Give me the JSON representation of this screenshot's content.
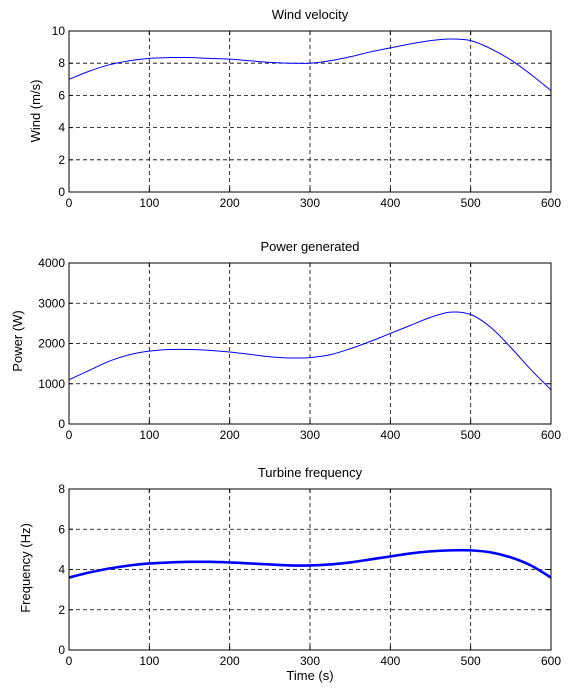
{
  "colors": {
    "line": "#0000ff",
    "axis": "#000000",
    "background": "#ffffff"
  },
  "chart_data": [
    {
      "type": "line",
      "title": "Wind velocity",
      "xlabel": "",
      "ylabel": "Wind  (m/s)",
      "xlim": [
        0,
        600
      ],
      "ylim": [
        0,
        10
      ],
      "xticks": [
        "0",
        "100",
        "200",
        "300",
        "400",
        "500",
        "600"
      ],
      "yticks": [
        "0",
        "2",
        "4",
        "6",
        "8",
        "10"
      ],
      "grid": true,
      "series": [
        {
          "x": [
            0,
            25,
            50,
            75,
            100,
            125,
            150,
            175,
            200,
            225,
            250,
            275,
            300,
            325,
            350,
            375,
            400,
            425,
            450,
            475,
            500,
            525,
            550,
            575,
            600
          ],
          "y": [
            7.0,
            7.5,
            7.9,
            8.15,
            8.3,
            8.35,
            8.35,
            8.3,
            8.25,
            8.15,
            8.05,
            8.0,
            8.0,
            8.15,
            8.4,
            8.7,
            8.95,
            9.2,
            9.4,
            9.5,
            9.4,
            8.9,
            8.2,
            7.3,
            6.3
          ]
        }
      ]
    },
    {
      "type": "line",
      "title": "Power generated",
      "xlabel": "",
      "ylabel": "Power (W)",
      "xlim": [
        0,
        600
      ],
      "ylim": [
        0,
        4000
      ],
      "xticks": [
        "0",
        "100",
        "200",
        "300",
        "400",
        "500",
        "600"
      ],
      "yticks": [
        "0",
        "1000",
        "2000",
        "3000",
        "4000"
      ],
      "grid": true,
      "series": [
        {
          "x": [
            0,
            25,
            50,
            75,
            100,
            125,
            150,
            175,
            200,
            225,
            250,
            275,
            300,
            325,
            350,
            375,
            400,
            425,
            450,
            475,
            500,
            525,
            550,
            575,
            600
          ],
          "y": [
            1100,
            1330,
            1560,
            1720,
            1810,
            1850,
            1850,
            1830,
            1790,
            1730,
            1670,
            1640,
            1650,
            1720,
            1870,
            2050,
            2250,
            2450,
            2650,
            2780,
            2720,
            2400,
            1900,
            1350,
            850
          ]
        }
      ]
    },
    {
      "type": "line",
      "title": "Turbine frequency",
      "xlabel": "Time (s)",
      "ylabel": "Frequency (Hz)",
      "xlim": [
        0,
        600
      ],
      "ylim": [
        0,
        8
      ],
      "xticks": [
        "0",
        "100",
        "200",
        "300",
        "400",
        "500",
        "600"
      ],
      "yticks": [
        "0",
        "2",
        "4",
        "6",
        "8"
      ],
      "grid": true,
      "series": [
        {
          "x": [
            0,
            25,
            50,
            75,
            100,
            125,
            150,
            175,
            200,
            225,
            250,
            275,
            300,
            325,
            350,
            375,
            400,
            425,
            450,
            475,
            500,
            525,
            550,
            575,
            600
          ],
          "y": [
            3.6,
            3.85,
            4.05,
            4.2,
            4.3,
            4.35,
            4.38,
            4.38,
            4.35,
            4.3,
            4.25,
            4.2,
            4.2,
            4.25,
            4.35,
            4.5,
            4.65,
            4.8,
            4.9,
            4.95,
            4.95,
            4.85,
            4.6,
            4.2,
            3.6
          ]
        }
      ]
    }
  ]
}
